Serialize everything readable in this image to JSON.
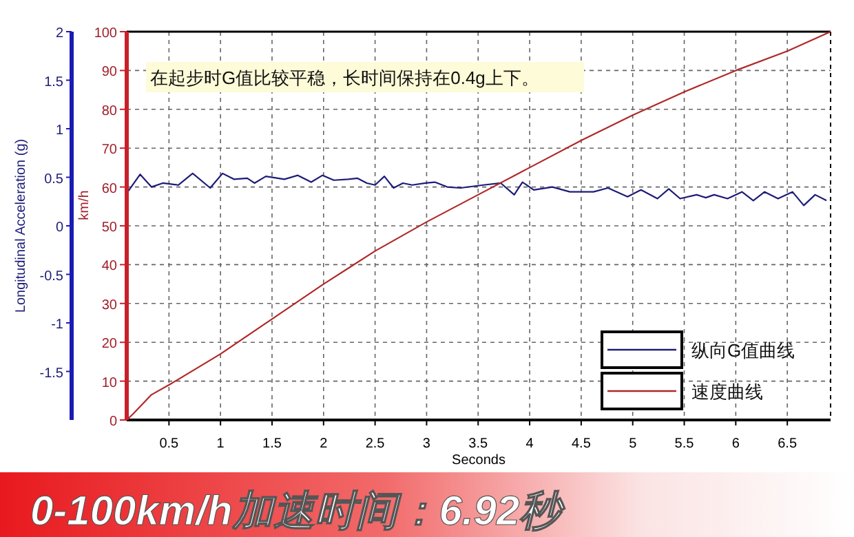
{
  "chart_data": {
    "type": "line",
    "title": "0-100km/h加速时间：6.92秒",
    "xlabel": "Seconds",
    "ylabel": "km/h",
    "y2label": "Longitudinal Acceleration (g)",
    "annotations": [
      "在起步时G值比较平稳，长时间保持在0.4g上下。"
    ],
    "xlim": [
      0.09,
      6.92
    ],
    "xticks": [
      0.5,
      1,
      1.5,
      2,
      2.5,
      3,
      3.5,
      4,
      4.5,
      5,
      5.5,
      6,
      6.5
    ],
    "ylim": [
      0,
      100
    ],
    "yticks": [
      0,
      10,
      20,
      30,
      40,
      50,
      60,
      70,
      80,
      90,
      100
    ],
    "y2lim": [
      -2,
      2
    ],
    "y2ticks": [
      -1.5,
      -1,
      -0.5,
      0,
      0.5,
      1,
      1.5,
      2
    ],
    "grid": true,
    "legend": "bottom right",
    "marker": "none",
    "line_style": "solid",
    "series": [
      {
        "name": "纵向G值曲线",
        "color": "#1c1c78",
        "axis": "y2",
        "x": [
          0.1,
          0.22,
          0.33,
          0.44,
          0.59,
          0.73,
          0.9,
          1.02,
          1.13,
          1.26,
          1.33,
          1.44,
          1.62,
          1.75,
          1.88,
          1.99,
          2.1,
          2.24,
          2.33,
          2.42,
          2.5,
          2.59,
          2.68,
          2.77,
          2.86,
          2.99,
          3.08,
          3.2,
          3.33,
          3.55,
          3.72,
          3.85,
          3.93,
          4.04,
          4.22,
          4.39,
          4.62,
          4.76,
          4.95,
          5.08,
          5.24,
          5.35,
          5.46,
          5.62,
          5.71,
          5.79,
          5.92,
          6.06,
          6.17,
          6.28,
          6.41,
          6.55,
          6.66,
          6.77,
          6.88
        ],
        "values": [
          0.35,
          0.53,
          0.4,
          0.44,
          0.42,
          0.54,
          0.39,
          0.54,
          0.48,
          0.49,
          0.44,
          0.51,
          0.48,
          0.52,
          0.45,
          0.52,
          0.47,
          0.48,
          0.49,
          0.44,
          0.42,
          0.51,
          0.39,
          0.44,
          0.42,
          0.44,
          0.45,
          0.4,
          0.39,
          0.42,
          0.44,
          0.32,
          0.45,
          0.37,
          0.4,
          0.35,
          0.35,
          0.39,
          0.3,
          0.37,
          0.28,
          0.38,
          0.28,
          0.32,
          0.29,
          0.32,
          0.28,
          0.35,
          0.26,
          0.35,
          0.28,
          0.35,
          0.21,
          0.32,
          0.26
        ]
      },
      {
        "name": "速度曲线",
        "color": "#b02828",
        "x": [
          0.09,
          0.15,
          0.33,
          0.53,
          1,
          1.5,
          2,
          2.5,
          3,
          3.5,
          4,
          4.5,
          5,
          5.5,
          6,
          6.5,
          6.92
        ],
        "values": [
          0,
          1.5,
          6.5,
          9.5,
          17,
          26,
          35,
          43.5,
          51,
          58,
          65,
          72,
          78.5,
          84.5,
          90,
          95,
          100
        ]
      }
    ]
  }
}
